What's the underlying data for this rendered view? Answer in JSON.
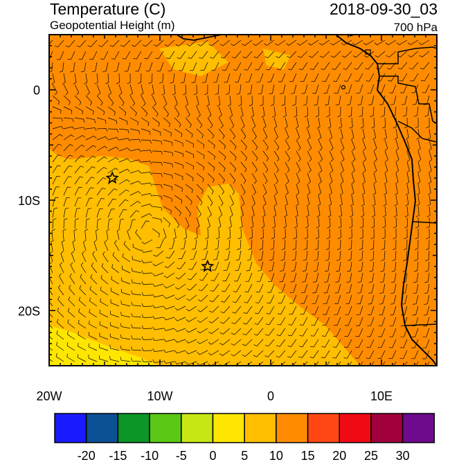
{
  "header": {
    "title": "Temperature (C)",
    "subtitle": "Geopotential Height (m)",
    "datetime": "2018-09-30_03",
    "level": "700 hPa"
  },
  "map": {
    "lon_range": [
      -20,
      15
    ],
    "lat_range": [
      -25,
      5
    ],
    "x_ticks": [
      {
        "lon": -20,
        "label": "20W"
      },
      {
        "lon": -10,
        "label": "10W"
      },
      {
        "lon": 0,
        "label": "0"
      },
      {
        "lon": 10,
        "label": "10E"
      }
    ],
    "y_ticks": [
      {
        "lat": 0,
        "label": "0"
      },
      {
        "lat": -10,
        "label": "10S"
      },
      {
        "lat": -20,
        "label": "20S"
      }
    ],
    "markers": [
      {
        "name": "star-marker",
        "lon": -14.3,
        "lat": -8.0
      },
      {
        "name": "star-marker",
        "lon": -5.7,
        "lat": -16.0
      }
    ]
  },
  "colorbar": {
    "colors": [
      "#1a1aff",
      "#0c5096",
      "#0c9628",
      "#5ac814",
      "#c8e614",
      "#ffe600",
      "#ffbe00",
      "#ff8c00",
      "#ff4614",
      "#f00a14",
      "#a0003c",
      "#6e0a8c"
    ],
    "labels": [
      "-20",
      "-15",
      "-10",
      "-5",
      "0",
      "5",
      "10",
      "15",
      "20",
      "25",
      "30"
    ]
  },
  "palette": {
    "yellow": "#ffe600",
    "orange_light": "#ffbe00",
    "orange": "#ff8c00"
  }
}
